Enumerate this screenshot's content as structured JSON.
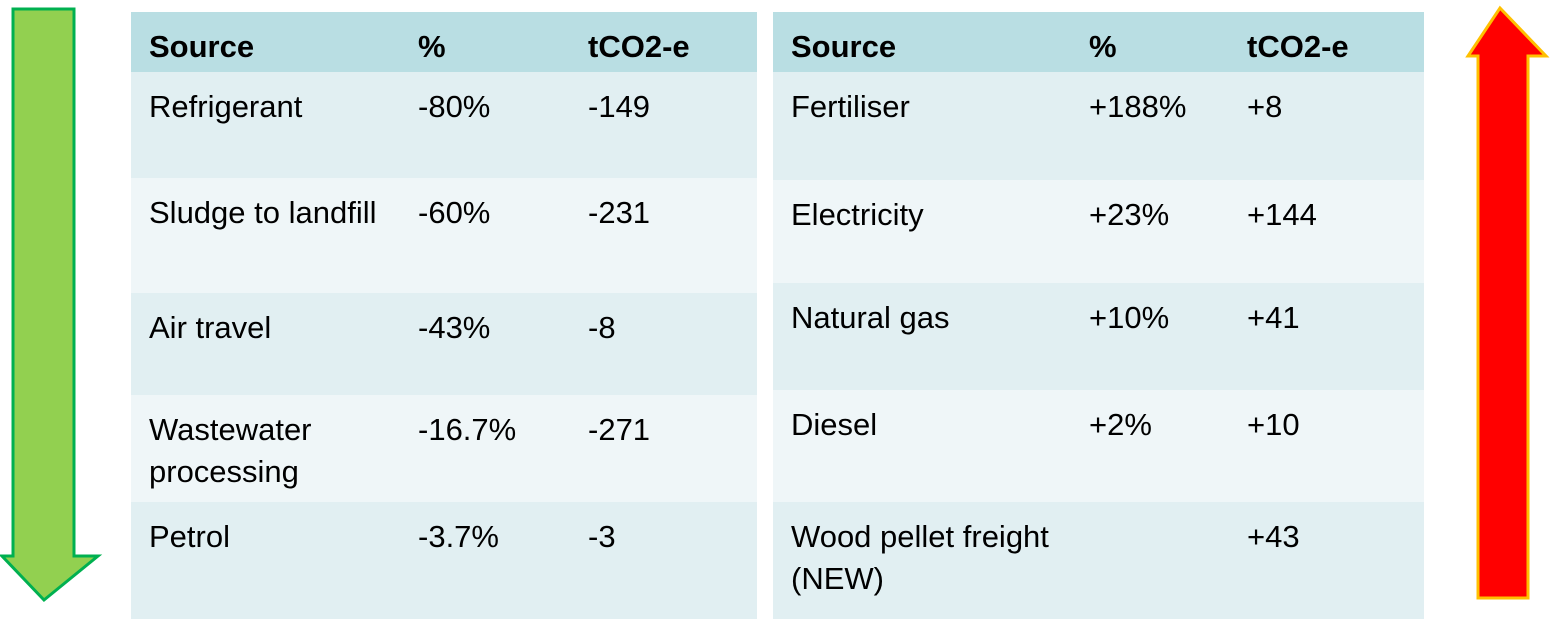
{
  "tables": [
    {
      "header": [
        "Source",
        "%",
        "tCO2-e"
      ],
      "rows": [
        [
          "Refrigerant",
          "-80%",
          "-149"
        ],
        [
          "Sludge to landfill",
          "-60%",
          "-231"
        ],
        [
          "Air travel",
          "-43%",
          "-8"
        ],
        [
          "Wastewater processing",
          "-16.7%",
          "-271"
        ],
        [
          "Petrol",
          "-3.7%",
          "-3"
        ]
      ]
    },
    {
      "header": [
        "Source",
        "%",
        "tCO2-e"
      ],
      "rows": [
        [
          "Fertiliser",
          "+188%",
          "+8"
        ],
        [
          "Electricity",
          "+23%",
          "+144"
        ],
        [
          "Natural gas",
          "+10%",
          "+41"
        ],
        [
          "Diesel",
          "+2%",
          "+10"
        ],
        [
          "Wood pellet freight (NEW)",
          null,
          "+43"
        ]
      ]
    }
  ]
}
